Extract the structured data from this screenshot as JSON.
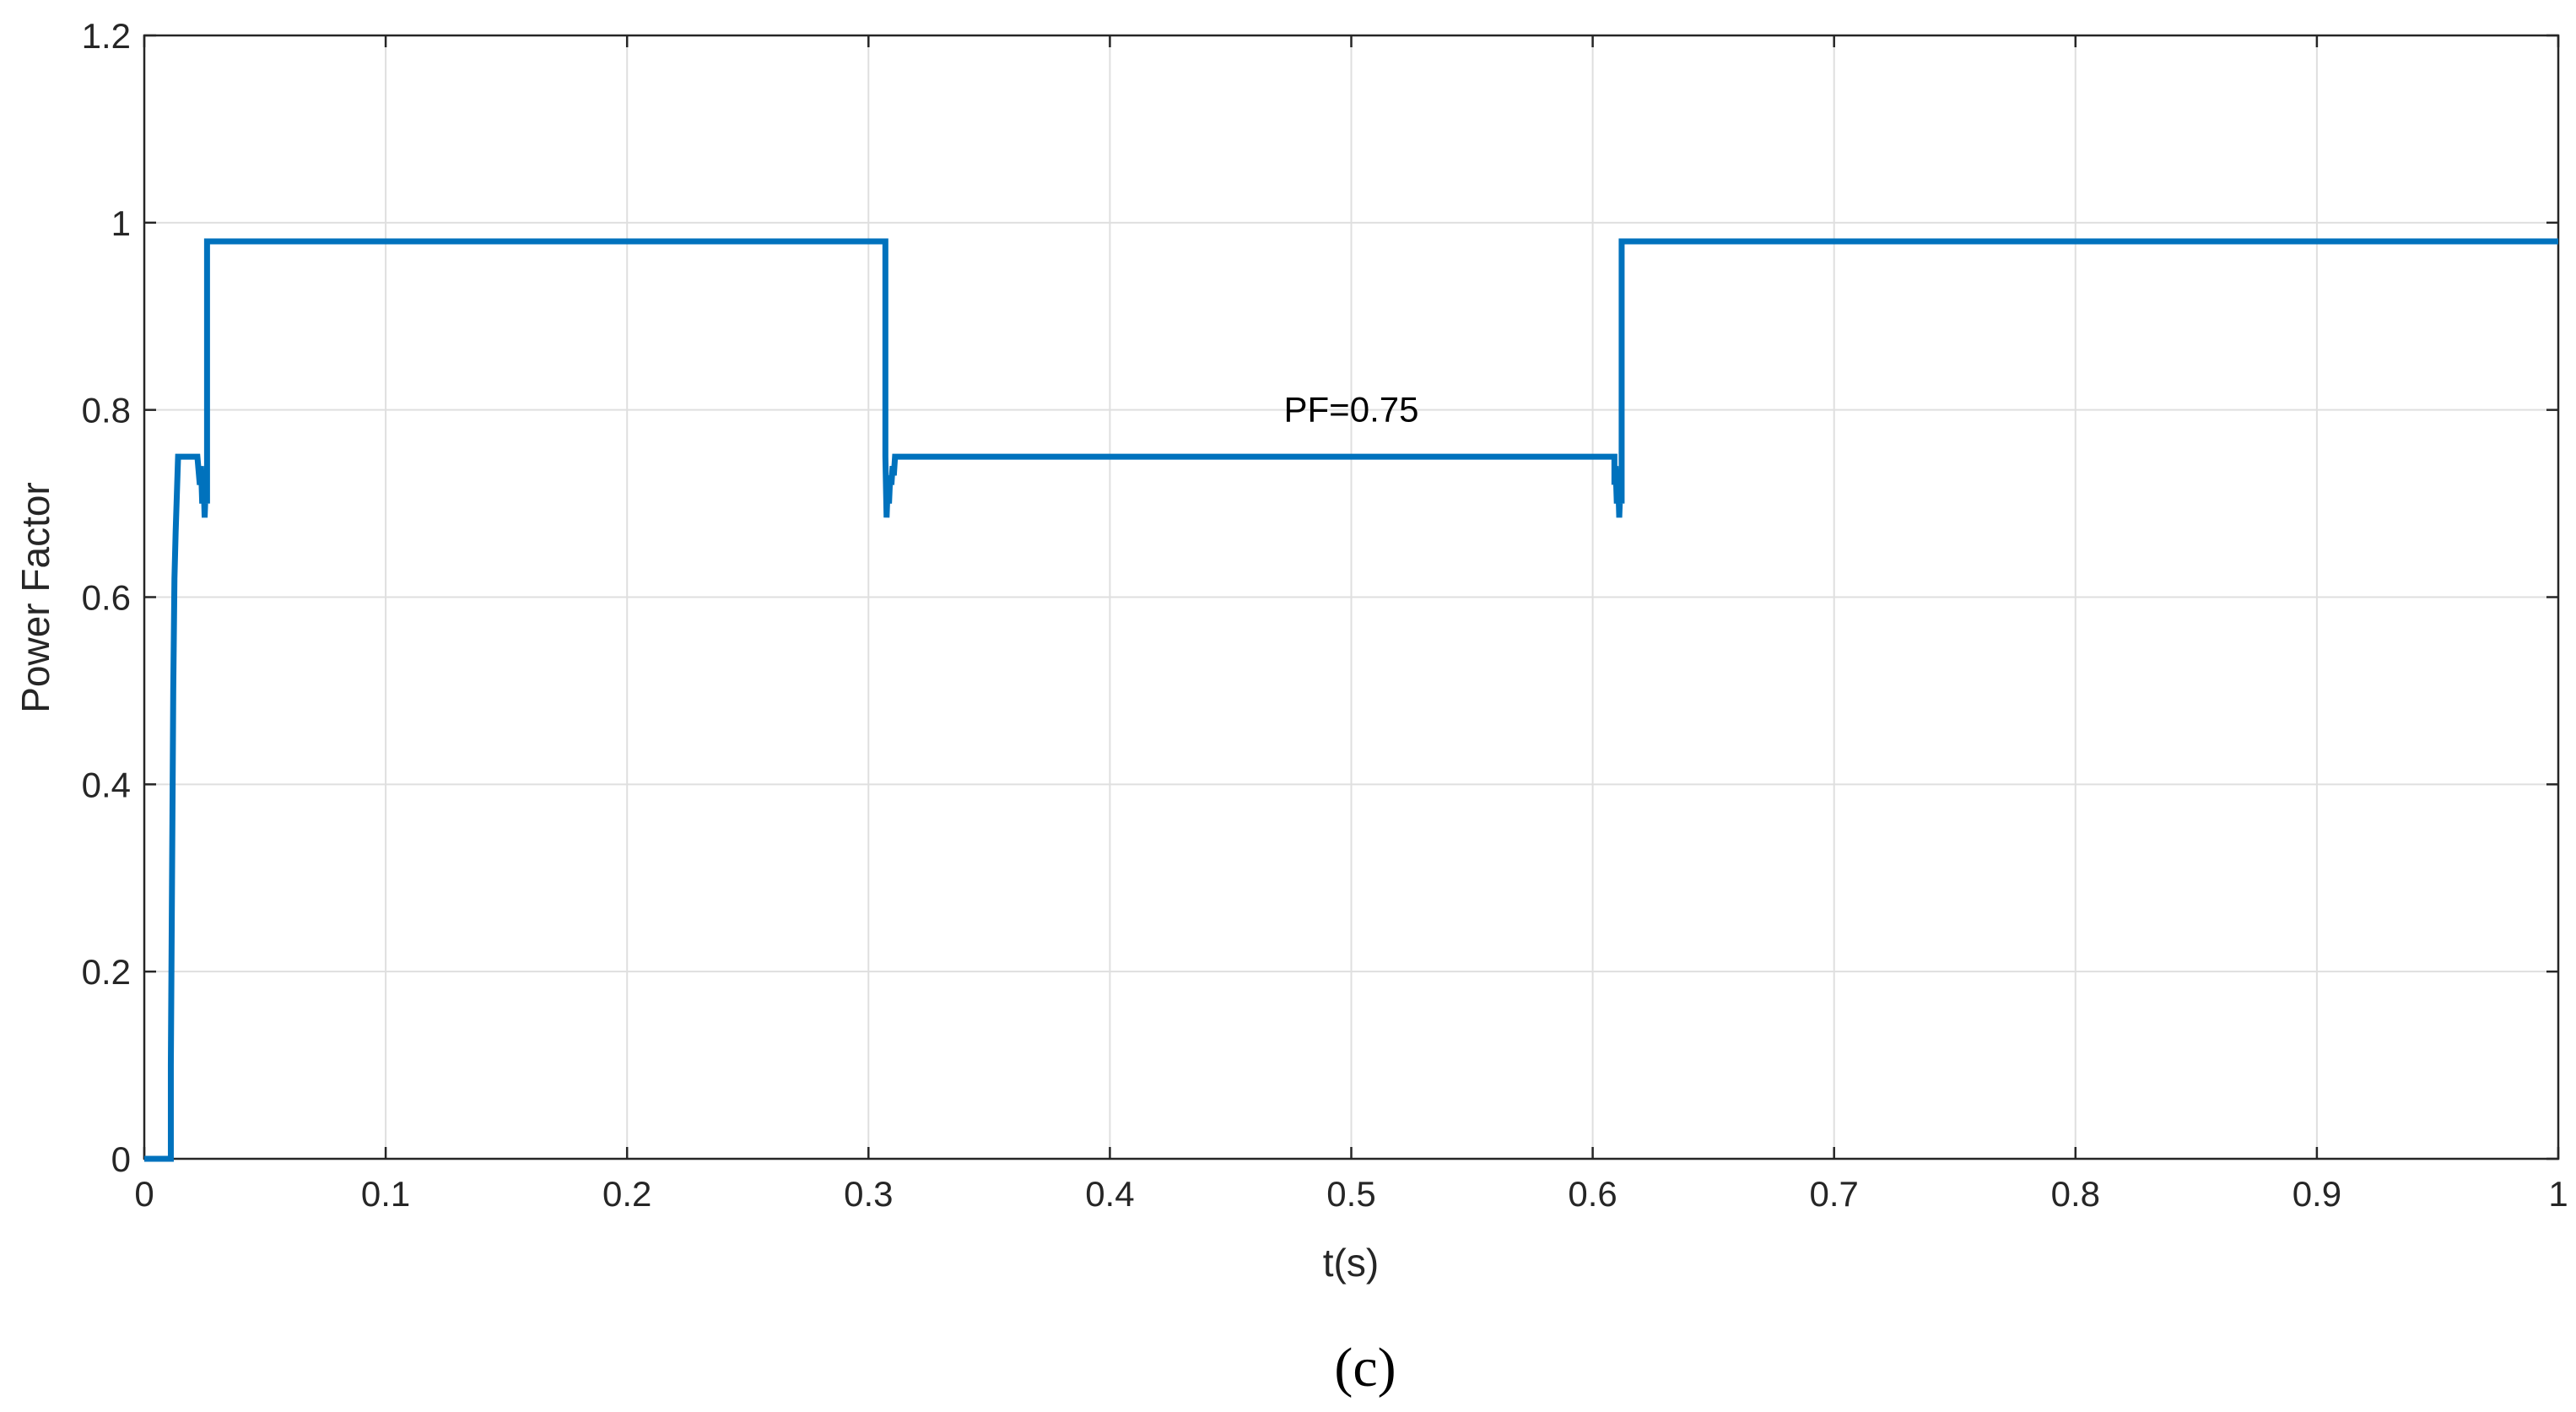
{
  "chart_data": {
    "type": "line",
    "xlabel": "t(s)",
    "ylabel": "Power Factor",
    "xlim": [
      0,
      1
    ],
    "ylim": [
      0,
      1.2
    ],
    "xticks": [
      0,
      0.1,
      0.2,
      0.3,
      0.4,
      0.5,
      0.6,
      0.7,
      0.8,
      0.9,
      1
    ],
    "xtick_labels": [
      "0",
      "0.1",
      "0.2",
      "0.3",
      "0.4",
      "0.5",
      "0.6",
      "0.7",
      "0.8",
      "0.9",
      "1"
    ],
    "yticks": [
      0,
      0.2,
      0.4,
      0.6,
      0.8,
      1,
      1.2
    ],
    "ytick_labels": [
      "0",
      "0.2",
      "0.4",
      "0.6",
      "0.8",
      "1",
      "1.2"
    ],
    "grid": true,
    "series_color": "#0072bd",
    "series": [
      {
        "x": [
          0,
          0.011,
          0.011,
          0.012,
          0.0125,
          0.013,
          0.0135,
          0.014,
          0.022,
          0.023,
          0.0235,
          0.024,
          0.0245,
          0.025,
          0.0255,
          0.026,
          0.026,
          0.307,
          0.307,
          0.3075,
          0.308,
          0.3085,
          0.309,
          0.3095,
          0.31,
          0.3105,
          0.311,
          0.311,
          0.609,
          0.609,
          0.6095,
          0.61,
          0.6105,
          0.611,
          0.6115,
          0.612,
          0.612,
          1
        ],
        "y": [
          0,
          0,
          0.1,
          0.5,
          0.62,
          0.67,
          0.71,
          0.75,
          0.75,
          0.72,
          0.74,
          0.7,
          0.73,
          0.685,
          0.72,
          0.7,
          0.98,
          0.98,
          0.75,
          0.685,
          0.72,
          0.7,
          0.73,
          0.72,
          0.74,
          0.73,
          0.75,
          0.75,
          0.75,
          0.72,
          0.74,
          0.7,
          0.73,
          0.685,
          0.72,
          0.7,
          0.98,
          0.98
        ]
      }
    ],
    "annotation": {
      "text": "PF=0.75",
      "x": 0.5,
      "y": 0.8
    }
  },
  "caption": "(c)"
}
